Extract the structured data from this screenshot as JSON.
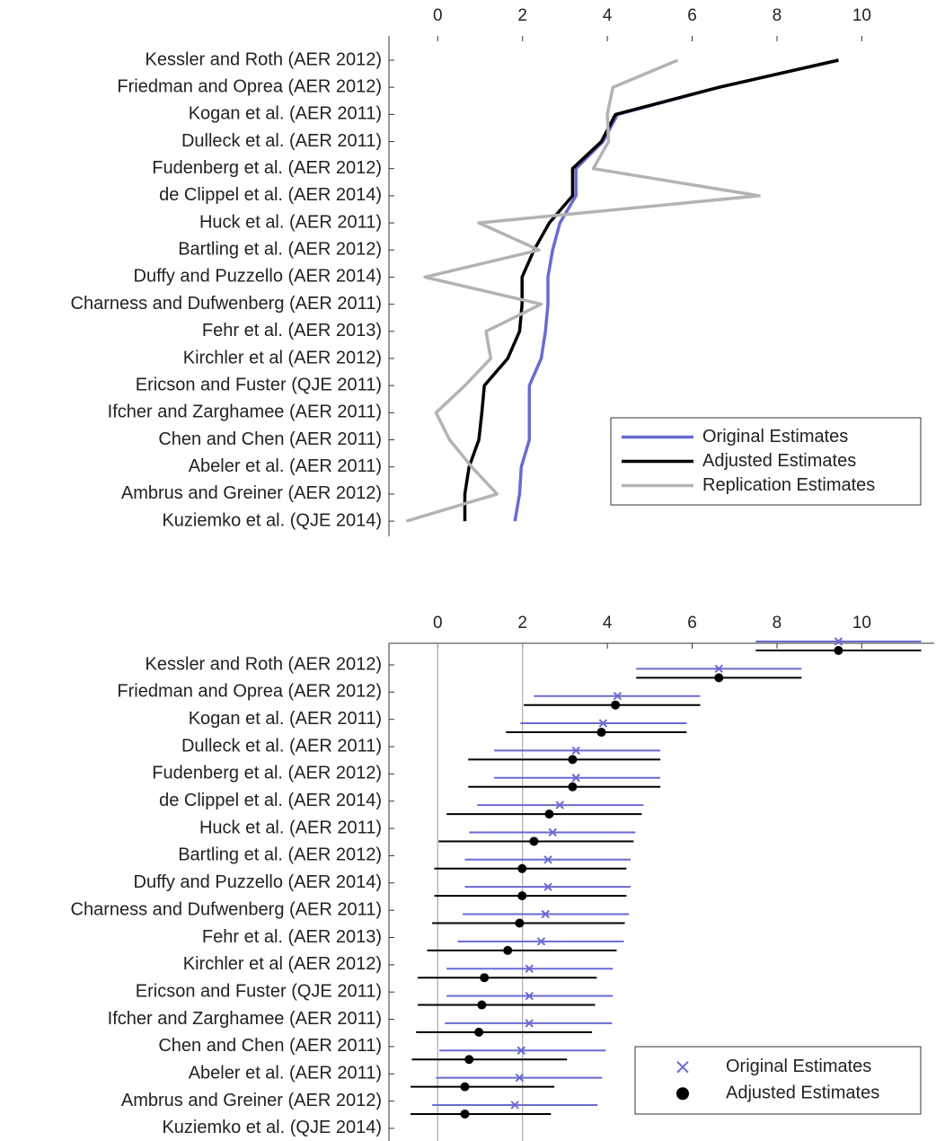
{
  "chart_data": [
    {
      "type": "line",
      "categories": [
        "Kessler and Roth (AER 2012)",
        "Friedman and Oprea (AER 2012)",
        "Kogan et al. (AER 2011)",
        "Dulleck et al. (AER 2011)",
        "Fudenberg et al. (AER 2012)",
        "de Clippel et al. (AER 2014)",
        "Huck et al. (AER 2011)",
        "Bartling et al. (AER 2012)",
        "Duffy and Puzzello (AER 2014)",
        "Charness and Dufwenberg (AER 2011)",
        "Fehr et al. (AER 2013)",
        "Kirchler et al (AER 2012)",
        "Ericson and Fuster (QJE 2011)",
        "Ifcher and Zarghamee (AER 2011)",
        "Chen and Chen (AER 2011)",
        "Abeler et al. (AER 2011)",
        "Ambrus and Greiner (AER 2012)",
        "Kuziemko et al. (QJE 2014)"
      ],
      "series": [
        {
          "name": "Original Estimates",
          "color": "#6a6ad2",
          "values": [
            9.45,
            6.63,
            4.24,
            3.9,
            3.26,
            3.26,
            2.88,
            2.71,
            2.6,
            2.6,
            2.54,
            2.44,
            2.16,
            2.16,
            2.16,
            1.97,
            1.93,
            1.82
          ]
        },
        {
          "name": "Adjusted Estimates",
          "color": "#000000",
          "values": [
            9.45,
            6.63,
            4.19,
            3.86,
            3.18,
            3.18,
            2.63,
            2.27,
            1.99,
            1.99,
            1.93,
            1.65,
            1.1,
            1.04,
            0.97,
            0.74,
            0.64,
            0.64
          ]
        },
        {
          "name": "Replication Estimates",
          "color": "#b3b3b3",
          "values": [
            5.66,
            4.13,
            4.0,
            4.03,
            3.67,
            7.58,
            0.97,
            2.39,
            -0.3,
            2.44,
            1.14,
            1.25,
            0.64,
            -0.04,
            0.28,
            0.8,
            1.4,
            -0.74
          ]
        }
      ],
      "xlim": [
        -1.15,
        11.75
      ],
      "xticks": [
        0,
        2,
        4,
        6,
        8,
        10
      ],
      "legend": "lower right"
    },
    {
      "type": "errorbar",
      "categories": [
        "Kessler and Roth (AER 2012)",
        "Friedman and Oprea (AER 2012)",
        "Kogan et al. (AER 2011)",
        "Dulleck et al. (AER 2011)",
        "Fudenberg et al. (AER 2012)",
        "de Clippel et al. (AER 2014)",
        "Huck et al. (AER 2011)",
        "Bartling et al. (AER 2012)",
        "Duffy and Puzzello (AER 2014)",
        "Charness and Dufwenberg (AER 2011)",
        "Fehr et al. (AER 2013)",
        "Kirchler et al (AER 2012)",
        "Ericson and Fuster (QJE 2011)",
        "Ifcher and Zarghamee (AER 2011)",
        "Chen and Chen (AER 2011)",
        "Abeler et al. (AER 2011)",
        "Ambrus and Greiner (AER 2012)",
        "Kuziemko et al. (QJE 2014)"
      ],
      "series": [
        {
          "name": "Original Estimates",
          "color": "#6a6ad2",
          "marker": "x",
          "values": [
            9.45,
            6.63,
            4.24,
            3.9,
            3.26,
            3.26,
            2.88,
            2.71,
            2.6,
            2.6,
            2.54,
            2.44,
            2.16,
            2.16,
            2.16,
            1.97,
            1.93,
            1.82
          ],
          "low": [
            7.5,
            4.68,
            2.27,
            1.95,
            1.33,
            1.33,
            0.93,
            0.74,
            0.64,
            0.64,
            0.59,
            0.47,
            0.21,
            0.21,
            0.17,
            0.04,
            -0.04,
            -0.13
          ],
          "high": [
            11.4,
            8.58,
            6.19,
            5.87,
            5.25,
            5.25,
            4.85,
            4.66,
            4.55,
            4.55,
            4.51,
            4.39,
            4.13,
            4.13,
            4.11,
            3.96,
            3.88,
            3.77
          ]
        },
        {
          "name": "Adjusted Estimates",
          "color": "#000000",
          "marker": "dot",
          "values": [
            9.45,
            6.63,
            4.19,
            3.86,
            3.18,
            3.18,
            2.63,
            2.27,
            1.99,
            1.99,
            1.93,
            1.65,
            1.1,
            1.04,
            0.97,
            0.74,
            0.64,
            0.64
          ],
          "low": [
            7.5,
            4.68,
            2.03,
            1.61,
            0.72,
            0.72,
            0.21,
            0.02,
            -0.08,
            -0.08,
            -0.13,
            -0.25,
            -0.47,
            -0.47,
            -0.51,
            -0.61,
            -0.64,
            -0.64
          ],
          "high": [
            11.4,
            8.58,
            6.19,
            5.87,
            5.25,
            5.25,
            4.81,
            4.62,
            4.45,
            4.45,
            4.41,
            4.22,
            3.75,
            3.71,
            3.64,
            3.05,
            2.75,
            2.67
          ]
        }
      ],
      "xlim": [
        -1.15,
        11.75
      ],
      "xticks": [
        0,
        2,
        4,
        6,
        8,
        10
      ],
      "xlines": [
        0,
        2
      ],
      "legend": "lower right"
    }
  ]
}
